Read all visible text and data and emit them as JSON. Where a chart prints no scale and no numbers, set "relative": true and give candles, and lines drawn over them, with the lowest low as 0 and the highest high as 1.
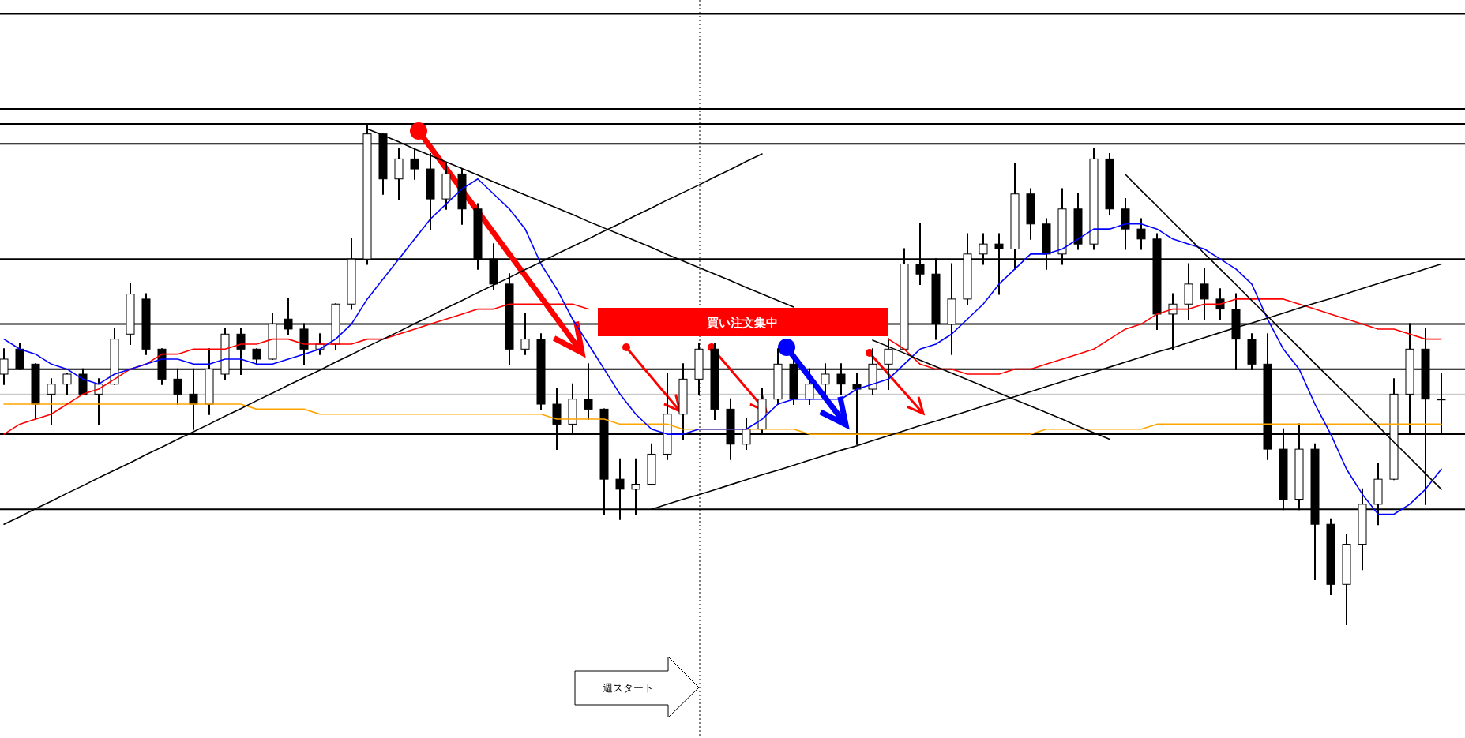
{
  "chart_data": {
    "type": "candlestick",
    "relative": true,
    "categories": [
      null,
      null,
      null,
      null,
      null,
      null,
      null,
      null,
      null,
      null,
      null,
      null,
      null,
      null,
      null,
      null,
      null,
      null,
      null,
      null,
      null,
      null,
      null,
      null,
      null,
      null,
      null,
      null,
      null,
      null,
      null,
      null,
      null,
      null,
      null,
      null,
      null,
      null,
      null,
      null,
      null,
      null,
      null,
      null,
      null,
      null,
      null,
      null,
      null,
      null,
      null,
      null,
      null,
      null,
      null,
      null,
      null,
      null,
      null,
      null,
      null,
      null,
      null,
      null,
      null,
      null,
      null,
      null,
      null,
      null,
      null,
      null,
      null,
      null,
      null,
      null,
      null,
      null,
      null,
      null,
      null,
      null,
      null,
      null,
      null,
      null,
      null,
      null,
      null,
      null,
      null,
      null
    ],
    "ohlc": [
      [
        0.5,
        0.55,
        0.48,
        0.53
      ],
      [
        0.55,
        0.56,
        0.51,
        0.51
      ],
      [
        0.52,
        0.52,
        0.41,
        0.44
      ],
      [
        0.46,
        0.49,
        0.4,
        0.48
      ],
      [
        0.48,
        0.5,
        0.46,
        0.5
      ],
      [
        0.5,
        0.51,
        0.46,
        0.46
      ],
      [
        0.46,
        0.49,
        0.4,
        0.48
      ],
      [
        0.48,
        0.59,
        0.48,
        0.57
      ],
      [
        0.58,
        0.68,
        0.56,
        0.66
      ],
      [
        0.65,
        0.66,
        0.54,
        0.55
      ],
      [
        0.55,
        0.55,
        0.48,
        0.49
      ],
      [
        0.49,
        0.51,
        0.44,
        0.46
      ],
      [
        0.46,
        0.51,
        0.39,
        0.44
      ],
      [
        0.44,
        0.55,
        0.42,
        0.51
      ],
      [
        0.5,
        0.59,
        0.49,
        0.58
      ],
      [
        0.58,
        0.59,
        0.5,
        0.55
      ],
      [
        0.55,
        0.55,
        0.52,
        0.53
      ],
      [
        0.53,
        0.62,
        0.53,
        0.6
      ],
      [
        0.61,
        0.65,
        0.58,
        0.59
      ],
      [
        0.59,
        0.6,
        0.52,
        0.55
      ],
      [
        0.55,
        0.58,
        0.54,
        0.56
      ],
      [
        0.56,
        0.64,
        0.55,
        0.64
      ],
      [
        0.64,
        0.77,
        0.63,
        0.73
      ],
      [
        0.73,
        1.0,
        0.72,
        0.98
      ],
      [
        0.98,
        0.98,
        0.86,
        0.89
      ],
      [
        0.89,
        0.95,
        0.85,
        0.93
      ],
      [
        0.93,
        0.95,
        0.89,
        0.91
      ],
      [
        0.91,
        0.94,
        0.79,
        0.85
      ],
      [
        0.85,
        0.92,
        0.83,
        0.9
      ],
      [
        0.9,
        0.91,
        0.8,
        0.83
      ],
      [
        0.83,
        0.84,
        0.71,
        0.73
      ],
      [
        0.73,
        0.76,
        0.67,
        0.68
      ],
      [
        0.68,
        0.7,
        0.52,
        0.55
      ],
      [
        0.55,
        0.62,
        0.54,
        0.57
      ],
      [
        0.57,
        0.58,
        0.43,
        0.44
      ],
      [
        0.44,
        0.47,
        0.35,
        0.4
      ],
      [
        0.4,
        0.48,
        0.38,
        0.45
      ],
      [
        0.45,
        0.52,
        0.41,
        0.43
      ],
      [
        0.43,
        0.43,
        0.22,
        0.29
      ],
      [
        0.29,
        0.33,
        0.21,
        0.27
      ],
      [
        0.27,
        0.33,
        0.22,
        0.28
      ],
      [
        0.28,
        0.36,
        0.28,
        0.34
      ],
      [
        0.34,
        0.5,
        0.33,
        0.42
      ],
      [
        0.42,
        0.52,
        0.37,
        0.49
      ],
      [
        0.49,
        0.56,
        0.46,
        0.55
      ],
      [
        0.55,
        0.56,
        0.41,
        0.43
      ],
      [
        0.43,
        0.45,
        0.33,
        0.36
      ],
      [
        0.36,
        0.41,
        0.35,
        0.39
      ],
      [
        0.39,
        0.47,
        0.38,
        0.45
      ],
      [
        0.45,
        0.55,
        0.44,
        0.52
      ],
      [
        0.52,
        0.55,
        0.44,
        0.45
      ],
      [
        0.45,
        0.51,
        0.44,
        0.48
      ],
      [
        0.48,
        0.52,
        0.46,
        0.5
      ],
      [
        0.5,
        0.52,
        0.46,
        0.48
      ],
      [
        0.48,
        0.5,
        0.36,
        0.47
      ],
      [
        0.47,
        0.55,
        0.46,
        0.52
      ],
      [
        0.52,
        0.57,
        0.47,
        0.55
      ],
      [
        0.55,
        0.75,
        0.55,
        0.72
      ],
      [
        0.72,
        0.8,
        0.68,
        0.7
      ],
      [
        0.7,
        0.73,
        0.57,
        0.6
      ],
      [
        0.6,
        0.72,
        0.54,
        0.65
      ],
      [
        0.65,
        0.78,
        0.64,
        0.74
      ],
      [
        0.74,
        0.78,
        0.72,
        0.76
      ],
      [
        0.76,
        0.78,
        0.66,
        0.75
      ],
      [
        0.75,
        0.92,
        0.71,
        0.86
      ],
      [
        0.86,
        0.87,
        0.77,
        0.8
      ],
      [
        0.8,
        0.81,
        0.71,
        0.74
      ],
      [
        0.74,
        0.87,
        0.72,
        0.83
      ],
      [
        0.83,
        0.86,
        0.75,
        0.76
      ],
      [
        0.76,
        0.95,
        0.75,
        0.93
      ],
      [
        0.93,
        0.94,
        0.82,
        0.83
      ],
      [
        0.83,
        0.85,
        0.75,
        0.79
      ],
      [
        0.79,
        0.81,
        0.75,
        0.77
      ],
      [
        0.77,
        0.78,
        0.59,
        0.62
      ],
      [
        0.62,
        0.66,
        0.55,
        0.64
      ],
      [
        0.64,
        0.72,
        0.61,
        0.68
      ],
      [
        0.68,
        0.71,
        0.61,
        0.65
      ],
      [
        0.65,
        0.67,
        0.61,
        0.63
      ],
      [
        0.63,
        0.66,
        0.51,
        0.57
      ],
      [
        0.57,
        0.58,
        0.51,
        0.52
      ],
      [
        0.52,
        0.58,
        0.33,
        0.35
      ],
      [
        0.35,
        0.39,
        0.23,
        0.25
      ],
      [
        0.25,
        0.4,
        0.23,
        0.35
      ],
      [
        0.35,
        0.36,
        0.09,
        0.2
      ],
      [
        0.2,
        0.21,
        0.06,
        0.08
      ],
      [
        0.08,
        0.18,
        0,
        0.16
      ],
      [
        0.16,
        0.27,
        0.11,
        0.24
      ],
      [
        0.24,
        0.32,
        0.2,
        0.29
      ],
      [
        0.29,
        0.49,
        0.29,
        0.46
      ],
      [
        0.46,
        0.6,
        0.38,
        0.55
      ],
      [
        0.55,
        0.59,
        0.24,
        0.45
      ],
      [
        0.45,
        0.5,
        0.38,
        0.45
      ]
    ],
    "series": [
      {
        "type": "line",
        "color": "#ffa500",
        "values": [
          0.44,
          0.44,
          0.44,
          0.44,
          0.44,
          0.44,
          0.44,
          0.44,
          0.44,
          0.44,
          0.44,
          0.44,
          0.44,
          0.44,
          0.44,
          0.44,
          0.43,
          0.43,
          0.43,
          0.43,
          0.42,
          0.42,
          0.42,
          0.42,
          0.42,
          0.42,
          0.42,
          0.42,
          0.42,
          0.42,
          0.42,
          0.42,
          0.42,
          0.42,
          0.42,
          0.41,
          0.41,
          0.41,
          0.41,
          0.4,
          0.4,
          0.4,
          0.4,
          0.39,
          0.39,
          0.39,
          0.39,
          0.39,
          0.39,
          0.39,
          0.39,
          0.38,
          0.38,
          0.38,
          0.38,
          0.38,
          0.38,
          0.38,
          0.38,
          0.38,
          0.38,
          0.38,
          0.38,
          0.38,
          0.38,
          0.38,
          0.39,
          0.39,
          0.39,
          0.39,
          0.39,
          0.39,
          0.39,
          0.4,
          0.4,
          0.4,
          0.4,
          0.4,
          0.4,
          0.4,
          0.4,
          0.4,
          0.4,
          0.4,
          0.4,
          0.4,
          0.4,
          0.4,
          0.4,
          0.4,
          0.4,
          0.4
        ]
      },
      {
        "type": "line",
        "color": "#ff0000",
        "values": [
          0.38,
          0.4,
          0.41,
          0.42,
          0.44,
          0.46,
          0.47,
          0.49,
          0.51,
          0.52,
          0.54,
          0.54,
          0.55,
          0.55,
          0.55,
          0.56,
          0.56,
          0.57,
          0.57,
          0.56,
          0.56,
          0.56,
          0.56,
          0.57,
          0.57,
          0.58,
          0.59,
          0.6,
          0.61,
          0.62,
          0.63,
          0.63,
          0.64,
          0.64,
          0.64,
          0.64,
          0.64,
          0.63,
          null,
          null,
          null,
          null,
          null,
          null,
          null,
          null,
          null,
          null,
          null,
          null,
          null,
          null,
          null,
          null,
          null,
          null,
          0.57,
          0.55,
          0.52,
          0.51,
          0.51,
          0.5,
          0.5,
          0.5,
          0.51,
          0.51,
          0.52,
          0.53,
          0.54,
          0.55,
          0.57,
          0.59,
          0.6,
          0.62,
          0.63,
          0.63,
          0.64,
          0.64,
          0.65,
          0.65,
          0.65,
          0.65,
          0.64,
          0.63,
          0.62,
          0.61,
          0.6,
          0.59,
          0.59,
          0.58,
          0.57,
          0.57
        ]
      },
      {
        "type": "line",
        "color": "#0000ff",
        "values": [
          0.57,
          0.55,
          0.54,
          0.52,
          0.51,
          0.49,
          0.48,
          0.5,
          0.51,
          0.52,
          0.53,
          0.53,
          0.52,
          0.52,
          0.53,
          0.53,
          0.52,
          0.52,
          0.53,
          0.54,
          0.55,
          0.57,
          0.6,
          0.65,
          0.69,
          0.73,
          0.77,
          0.81,
          0.84,
          0.87,
          0.89,
          0.86,
          0.83,
          0.79,
          0.72,
          0.67,
          0.61,
          0.56,
          0.51,
          0.46,
          0.42,
          0.39,
          0.38,
          0.38,
          0.39,
          0.39,
          0.39,
          0.39,
          0.41,
          0.44,
          0.45,
          0.45,
          0.45,
          0.45,
          0.47,
          0.48,
          0.49,
          0.52,
          0.55,
          0.56,
          0.58,
          0.61,
          0.64,
          0.68,
          0.71,
          0.74,
          0.74,
          0.75,
          0.77,
          0.79,
          0.79,
          0.8,
          0.8,
          0.79,
          0.77,
          0.76,
          0.75,
          0.73,
          0.71,
          0.68,
          0.61,
          0.55,
          0.51,
          0.44,
          0.38,
          0.31,
          0.26,
          0.22,
          0.22,
          0.24,
          0.27,
          0.31
        ]
      },
      {
        "type": "line",
        "color": "#000000",
        "values": [
          0.2,
          0.215,
          0.231,
          0.246,
          0.262,
          0.277,
          0.293,
          0.308,
          0.323,
          0.339,
          0.354,
          0.37,
          0.385,
          0.4,
          0.416,
          0.431,
          0.447,
          0.462,
          0.478,
          0.493,
          0.508,
          0.524,
          0.539,
          0.555,
          0.57,
          0.585,
          0.601,
          0.616,
          0.632,
          0.647,
          0.663,
          0.678,
          0.693,
          0.709,
          0.724,
          0.74,
          0.755,
          0.77,
          0.786,
          0.801,
          0.817,
          0.832,
          0.848,
          0.863,
          0.878,
          0.894,
          0.909,
          0.925,
          0.94,
          null,
          null,
          null,
          null,
          null,
          null,
          null,
          null,
          null,
          null,
          null,
          null,
          null,
          null,
          null,
          null,
          null,
          null,
          null,
          null,
          null,
          null,
          null,
          null,
          null,
          null,
          null,
          null,
          null,
          null,
          null,
          null,
          null,
          null,
          null,
          null,
          null,
          null,
          null,
          null,
          null,
          null,
          null
        ]
      },
      {
        "type": "line",
        "color": "#000000",
        "values": [
          null,
          null,
          null,
          null,
          null,
          null,
          null,
          null,
          null,
          null,
          null,
          null,
          null,
          null,
          null,
          null,
          null,
          null,
          null,
          null,
          null,
          null,
          null,
          0.99,
          0.977,
          0.964,
          0.95,
          0.937,
          0.924,
          0.911,
          0.898,
          0.884,
          0.871,
          0.858,
          0.845,
          0.832,
          0.819,
          0.805,
          0.792,
          0.779,
          0.766,
          0.753,
          0.739,
          0.726,
          0.713,
          0.7,
          0.687,
          0.673,
          0.66,
          0.647,
          0.634,
          null,
          null,
          null,
          null,
          0.568,
          0.555,
          0.542,
          0.528,
          0.515,
          0.502,
          0.489,
          0.476,
          0.462,
          0.449,
          0.436,
          0.423,
          0.41,
          0.396,
          0.383,
          0.37,
          null,
          null,
          null,
          null,
          null,
          null,
          null,
          null,
          null,
          null,
          null,
          null,
          null,
          null,
          null,
          null,
          null,
          null,
          null,
          null,
          null
        ]
      },
      {
        "type": "line",
        "color": "#000000",
        "values": [
          null,
          null,
          null,
          null,
          null,
          null,
          null,
          null,
          null,
          null,
          null,
          null,
          null,
          null,
          null,
          null,
          null,
          null,
          null,
          null,
          null,
          null,
          null,
          null,
          null,
          null,
          null,
          null,
          null,
          null,
          null,
          null,
          null,
          null,
          null,
          null,
          null,
          null,
          null,
          null,
          null,
          0.23,
          0.24,
          0.25,
          0.259,
          0.269,
          0.279,
          0.289,
          0.299,
          0.308,
          0.318,
          0.328,
          0.338,
          0.348,
          0.357,
          0.367,
          0.377,
          0.387,
          0.397,
          0.406,
          0.416,
          0.426,
          0.436,
          0.446,
          0.455,
          0.465,
          0.475,
          0.485,
          0.495,
          0.504,
          0.514,
          0.524,
          0.534,
          0.544,
          0.553,
          0.563,
          0.573,
          0.583,
          0.593,
          0.602,
          0.612,
          0.622,
          0.632,
          0.642,
          0.651,
          0.661,
          0.671,
          0.681,
          0.691,
          0.7,
          0.71,
          0.72
        ]
      },
      {
        "type": "line",
        "color": "#000000",
        "values": [
          null,
          null,
          null,
          null,
          null,
          null,
          null,
          null,
          null,
          null,
          null,
          null,
          null,
          null,
          null,
          null,
          null,
          null,
          null,
          null,
          null,
          null,
          null,
          null,
          null,
          null,
          null,
          null,
          null,
          null,
          null,
          null,
          null,
          null,
          null,
          null,
          null,
          null,
          null,
          null,
          null,
          null,
          null,
          null,
          null,
          null,
          null,
          null,
          null,
          null,
          null,
          null,
          null,
          null,
          null,
          null,
          null,
          null,
          null,
          null,
          null,
          null,
          null,
          null,
          null,
          null,
          null,
          null,
          null,
          null,
          null,
          0.899,
          0.867,
          0.836,
          0.804,
          0.773,
          0.741,
          0.71,
          0.679,
          0.647,
          0.616,
          0.584,
          0.553,
          0.521,
          0.49,
          0.459,
          0.427,
          0.396,
          0.364,
          0.333,
          0.301,
          0.27
        ]
      }
    ],
    "ref_lines": [
      {
        "axis": "y",
        "value": 1.22,
        "color": "#000000"
      },
      {
        "axis": "y",
        "value": 1.03,
        "color": "#000000"
      },
      {
        "axis": "y",
        "value": 1.0,
        "color": "#000000"
      },
      {
        "axis": "y",
        "value": 0.96,
        "color": "#000000"
      },
      {
        "axis": "y",
        "value": 0.73,
        "color": "#000000"
      },
      {
        "axis": "y",
        "value": 0.6,
        "color": "#000000"
      },
      {
        "axis": "y",
        "value": 0.51,
        "color": "#000000"
      },
      {
        "axis": "y",
        "value": 0.46,
        "color": "#c0c0c0"
      },
      {
        "axis": "y",
        "value": 0.38,
        "color": "#000000"
      },
      {
        "axis": "y",
        "value": 0.23,
        "color": "#000000"
      }
    ],
    "annotations": [
      "買い注文集中",
      "週スタート"
    ]
  }
}
